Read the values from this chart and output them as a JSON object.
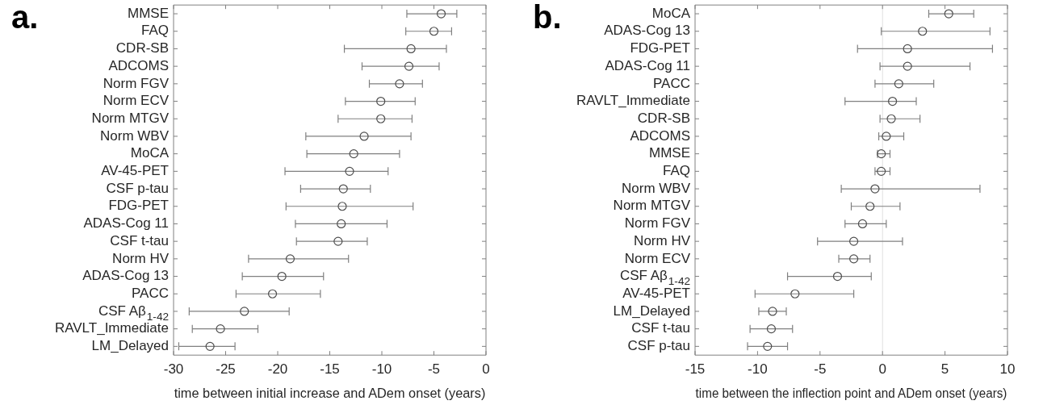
{
  "chart_data": [
    {
      "type": "scatter",
      "title": "a.",
      "xlabel": "time between initial increase and ADem onset (years)",
      "orientation": "horizontal",
      "marker": "circle",
      "color": "#4d4d4d",
      "categories": [
        "MMSE",
        "FAQ",
        "CDR-SB",
        "ADCOMS",
        "Norm FGV",
        "Norm ECV",
        "Norm MTGV",
        "Norm WBV",
        "MoCA",
        "AV-45-PET",
        "CSF p-tau",
        "FDG-PET",
        "ADAS-Cog 11",
        "CSF t-tau",
        "Norm HV",
        "ADAS-Cog 13",
        "PACC",
        "CSF Aβ$_{1-42}$",
        "RAVLT_Immediate",
        "LM_Delayed"
      ],
      "values": [
        -4.3,
        -5.0,
        -7.2,
        -7.4,
        -8.3,
        -10.1,
        -10.1,
        -11.7,
        -12.7,
        -13.1,
        -13.7,
        -13.8,
        -13.9,
        -14.2,
        -18.8,
        -19.6,
        -20.5,
        -23.2,
        -25.5,
        -26.5
      ],
      "errors": [
        [
          -7.6,
          -2.8
        ],
        [
          -7.7,
          -3.3
        ],
        [
          -13.6,
          -3.8
        ],
        [
          -11.9,
          -4.5
        ],
        [
          -11.2,
          -6.1
        ],
        [
          -13.5,
          -6.8
        ],
        [
          -14.2,
          -7.1
        ],
        [
          -17.3,
          -7.2
        ],
        [
          -17.2,
          -8.3
        ],
        [
          -19.3,
          -9.4
        ],
        [
          -17.8,
          -11.1
        ],
        [
          -19.2,
          -7.0
        ],
        [
          -18.3,
          -9.5
        ],
        [
          -18.2,
          -11.4
        ],
        [
          -22.8,
          -13.2
        ],
        [
          -23.4,
          -15.6
        ],
        [
          -24.0,
          -15.9
        ],
        [
          -28.5,
          -18.9
        ],
        [
          -28.2,
          -21.9
        ],
        [
          -29.5,
          -24.1
        ]
      ],
      "xlim": [
        -30,
        0
      ],
      "xticks": [
        -30,
        -25,
        -20,
        -15,
        -10,
        -5,
        0
      ]
    },
    {
      "type": "scatter",
      "title": "b.",
      "xlabel": "time between the inflection point and ADem onset (years)",
      "orientation": "horizontal",
      "marker": "circle",
      "color": "#4d4d4d",
      "categories": [
        "MoCA",
        "ADAS-Cog 13",
        "FDG-PET",
        "ADAS-Cog 11",
        "PACC",
        "RAVLT_Immediate",
        "CDR-SB",
        "ADCOMS",
        "MMSE",
        "FAQ",
        "Norm WBV",
        "Norm MTGV",
        "Norm FGV",
        "Norm HV",
        "Norm ECV",
        "CSF Aβ$_{1-42}$",
        "AV-45-PET",
        "LM_Delayed",
        "CSF t-tau",
        "CSF p-tau"
      ],
      "values": [
        5.3,
        3.2,
        2.0,
        2.0,
        1.3,
        0.8,
        0.7,
        0.3,
        -0.1,
        -0.1,
        -0.6,
        -1.0,
        -1.6,
        -2.3,
        -2.3,
        -3.6,
        -7.0,
        -8.8,
        -8.9,
        -9.2
      ],
      "errors": [
        [
          3.7,
          7.3
        ],
        [
          -0.1,
          8.6
        ],
        [
          -2.0,
          8.8
        ],
        [
          -0.2,
          7.0
        ],
        [
          -0.6,
          4.1
        ],
        [
          -3.0,
          2.7
        ],
        [
          -0.2,
          3.0
        ],
        [
          -0.3,
          1.7
        ],
        [
          -0.4,
          0.6
        ],
        [
          -0.6,
          0.6
        ],
        [
          -3.3,
          7.8
        ],
        [
          -2.5,
          1.4
        ],
        [
          -3.0,
          0.3
        ],
        [
          -5.2,
          1.6
        ],
        [
          -3.5,
          -1.0
        ],
        [
          -7.6,
          -0.9
        ],
        [
          -10.2,
          -2.3
        ],
        [
          -9.9,
          -7.7
        ],
        [
          -10.6,
          -7.2
        ],
        [
          -10.8,
          -7.6
        ]
      ],
      "xlim": [
        -15,
        10
      ],
      "xticks": [
        -15,
        -10,
        -5,
        0,
        5,
        10
      ],
      "ref_lines": [
        {
          "axis": "x",
          "value": 0,
          "color": "#e0e0e0"
        }
      ]
    }
  ]
}
